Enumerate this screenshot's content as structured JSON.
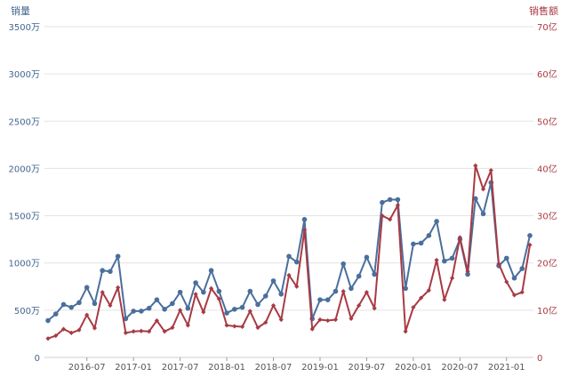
{
  "chart_data": {
    "type": "line",
    "left_axis": {
      "title": "销量",
      "min": 0,
      "max": 3500,
      "step": 500,
      "tick_labels": [
        "0",
        "500万",
        "1000万",
        "1500万",
        "2000万",
        "2500万",
        "3000万",
        "3500万"
      ]
    },
    "right_axis": {
      "title": "销售额",
      "min": 0,
      "max": 70,
      "step": 10,
      "tick_labels": [
        "0",
        "10亿",
        "20亿",
        "30亿",
        "40亿",
        "50亿",
        "60亿",
        "70亿"
      ]
    },
    "x_tick_labels": [
      "2016-07",
      "2017-01",
      "2017-07",
      "2018-01",
      "2018-07",
      "2019-01",
      "2019-07",
      "2020-01",
      "2020-07",
      "2021-01"
    ],
    "x_tick_indices": [
      5,
      11,
      17,
      23,
      29,
      35,
      41,
      47,
      53,
      59
    ],
    "grid": "horizontal",
    "colors": {
      "volume": "#4a6f9c",
      "revenue": "#a83a44",
      "grid": "#e3e3e3",
      "left_text": "#44648c",
      "right_text": "#a83a44"
    },
    "series": [
      {
        "axis": "left",
        "values": [
          390,
          460,
          560,
          530,
          580,
          740,
          570,
          920,
          910,
          1070,
          410,
          490,
          490,
          520,
          610,
          510,
          570,
          690,
          520,
          790,
          690,
          920,
          700,
          470,
          510,
          530,
          700,
          560,
          650,
          810,
          670,
          1070,
          1010,
          1460,
          410,
          610,
          610,
          700,
          990,
          730,
          860,
          1060,
          880,
          1640,
          1670,
          1670,
          730,
          1200,
          1210,
          1290,
          1440,
          1020,
          1050,
          1250,
          880,
          1680,
          1520,
          1850,
          970,
          1050,
          840,
          940,
          1290
        ]
      },
      {
        "axis": "right",
        "values": [
          4,
          4.6,
          6,
          5.2,
          5.8,
          9,
          6.2,
          13.8,
          11,
          14.8,
          5.2,
          5.5,
          5.6,
          5.5,
          7.8,
          5.5,
          6.3,
          10,
          6.8,
          13.4,
          9.6,
          14.6,
          12.4,
          6.8,
          6.6,
          6.5,
          9.8,
          6.3,
          7.4,
          11,
          8,
          17.4,
          15,
          27,
          6,
          8,
          7.8,
          8,
          14,
          8.2,
          11,
          13.8,
          10.4,
          30,
          29.2,
          32.2,
          5.5,
          10.6,
          12.6,
          14.2,
          20.6,
          12.2,
          16.8,
          25.4,
          18.2,
          40.6,
          35.6,
          39.6,
          19.8,
          16,
          13.2,
          13.8,
          23.8
        ]
      }
    ]
  }
}
